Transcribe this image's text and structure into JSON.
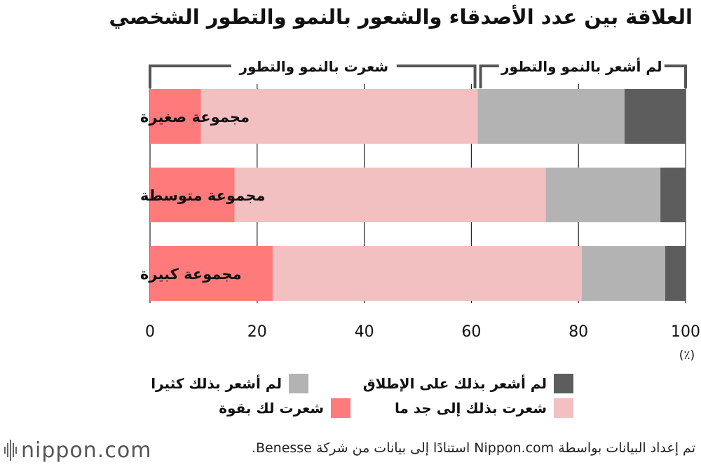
{
  "chart_data": {
    "type": "bar",
    "orientation": "horizontal",
    "stacked": true,
    "title": "العلاقة بين عدد الأصدقاء والشعور بالنمو والتطور الشخصي",
    "categories": [
      "مجموعة صغيرة",
      "مجموعة متوسطة",
      "مجموعة كبيرة"
    ],
    "series": [
      {
        "name": "شعرت لك بقوة",
        "color": "#ff7b7b",
        "values": [
          9.5,
          15.8,
          22.9
        ]
      },
      {
        "name": "شعرت بذلك إلى جد ما",
        "color": "#f2c0c0",
        "values": [
          51.7,
          58.1,
          57.7
        ]
      },
      {
        "name": "لم أشعر بذلك كثيرا",
        "color": "#b3b3b3",
        "values": [
          27.4,
          21.4,
          15.6
        ]
      },
      {
        "name": "لم أشعر بذلك على الإطلاق",
        "color": "#5d5d5d",
        "values": [
          11.4,
          4.7,
          3.8
        ]
      }
    ],
    "xlim": [
      0,
      100
    ],
    "x_ticks": [
      "0",
      "20",
      "40",
      "60",
      "80",
      "100"
    ],
    "unit": "(٪)",
    "grid": true,
    "group_brackets": [
      {
        "label": "شعرت بالنمو والتطور",
        "from": 0,
        "to": 61.2
      },
      {
        "label": "لم أشعر بالنمو والتطور",
        "from": 61.2,
        "to": 100
      }
    ]
  },
  "legend": {
    "items": [
      {
        "label": "لم أشعر بذلك على الإطلاق",
        "color": "#5d5d5d"
      },
      {
        "label": "لم أشعر بذلك كثيرا",
        "color": "#b3b3b3"
      },
      {
        "label": "شعرت بذلك إلى جد ما",
        "color": "#f2c0c0"
      },
      {
        "label": "شعرت لك بقوة",
        "color": "#ff7b7b"
      }
    ]
  },
  "footer": {
    "logo_text": "nippon.com",
    "source": "تم إعداد البيانات بواسطة Nippon.com استنادًا إلى بيانات من شركة Benesse."
  }
}
